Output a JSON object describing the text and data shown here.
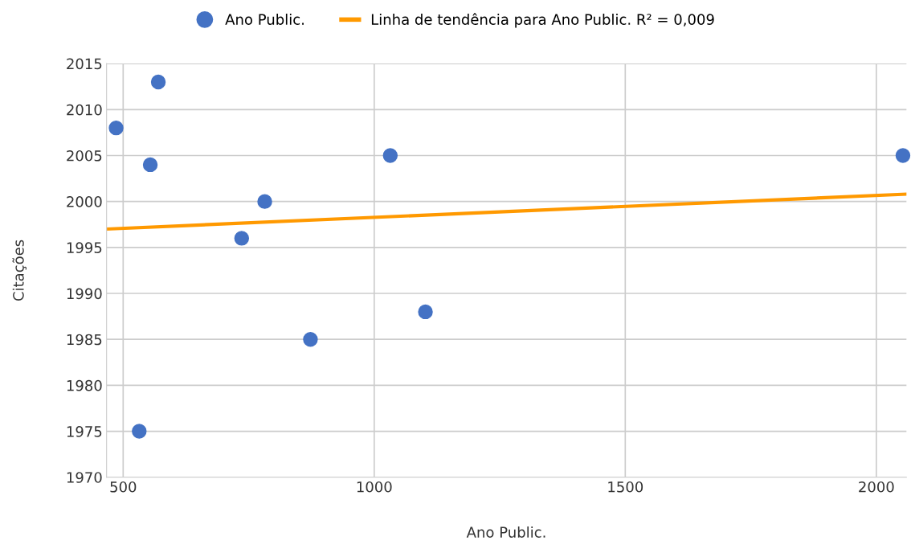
{
  "chart_data": {
    "type": "scatter",
    "xlabel": "Ano Public.",
    "ylabel": "Citações",
    "series": [
      {
        "name": "Ano Public.",
        "marker": "circle",
        "color": "#4472c4",
        "x": [
          486,
          570,
          554,
          532,
          736,
          782,
          873,
          1032,
          1102,
          2053
        ],
        "values": [
          2008,
          2013,
          2004,
          1975,
          1996,
          2000,
          1985,
          2005,
          1988,
          2005
        ]
      },
      {
        "name": "Linha de tendência para Ano Public. R² = 0,009",
        "type": "line",
        "marker": "none",
        "color": "#ff9900",
        "x": [
          467,
          2060
        ],
        "values": [
          1997.0,
          2000.8
        ]
      }
    ],
    "xlim": [
      467,
      2060
    ],
    "xticks": [
      500,
      1000,
      1500,
      2000
    ],
    "ylim": [
      1970,
      2015
    ],
    "yticks": [
      1970,
      1975,
      1980,
      1985,
      1990,
      1995,
      2000,
      2005,
      2010,
      2015
    ],
    "grid": true,
    "legend": "top"
  }
}
